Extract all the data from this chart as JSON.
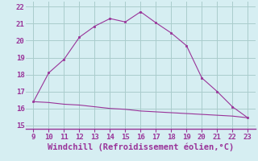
{
  "x_upper": [
    9,
    10,
    11,
    12,
    13,
    14,
    15,
    16,
    17,
    18,
    19,
    20,
    21,
    22,
    23
  ],
  "y_upper": [
    16.4,
    18.1,
    18.9,
    20.2,
    20.85,
    21.3,
    21.1,
    21.7,
    21.05,
    20.45,
    19.7,
    17.8,
    17.0,
    16.1,
    15.45
  ],
  "x_lower": [
    9,
    10,
    11,
    12,
    13,
    14,
    15,
    16,
    17,
    18,
    19,
    20,
    21,
    22,
    23
  ],
  "y_lower": [
    16.4,
    16.35,
    16.25,
    16.2,
    16.1,
    16.0,
    15.95,
    15.85,
    15.8,
    15.75,
    15.7,
    15.65,
    15.6,
    15.55,
    15.45
  ],
  "line_color": "#993399",
  "bg_color": "#d6eef2",
  "grid_color": "#aacccc",
  "xlabel": "Windchill (Refroidissement éolien,°C)",
  "xlim": [
    8.5,
    23.5
  ],
  "ylim": [
    14.8,
    22.3
  ],
  "xticks": [
    9,
    10,
    11,
    12,
    13,
    14,
    15,
    16,
    17,
    18,
    19,
    20,
    21,
    22,
    23
  ],
  "yticks": [
    15,
    16,
    17,
    18,
    19,
    20,
    21,
    22
  ],
  "xlabel_color": "#993399",
  "tick_color": "#993399",
  "tick_fontsize": 6.5,
  "xlabel_fontsize": 7.5,
  "spine_color": "#993399"
}
